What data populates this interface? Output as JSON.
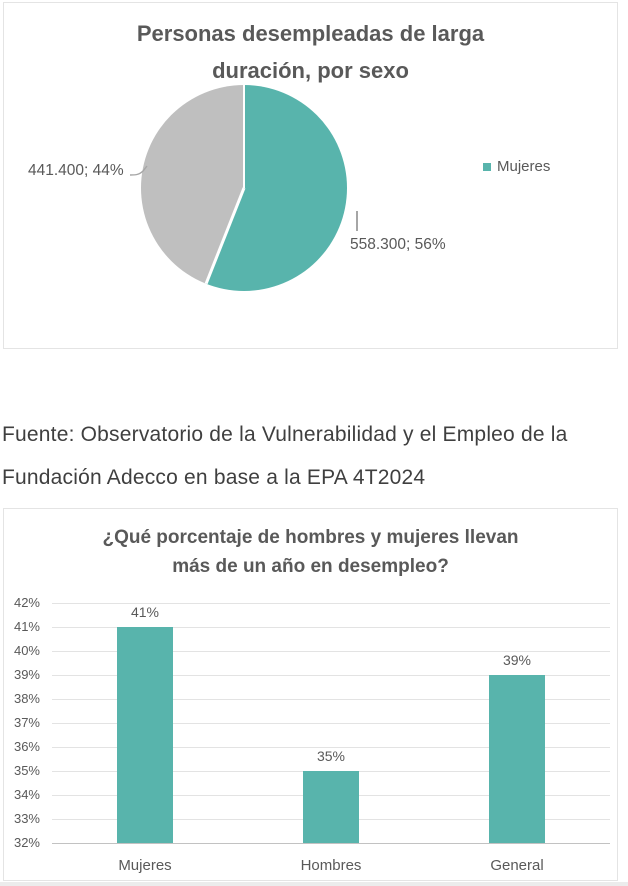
{
  "colors": {
    "teal": "#58B4AC",
    "pie_gray": "#BFBFBF",
    "chart_text": "#595959",
    "source_text": "#3F3F3F",
    "gridline": "#E3E3E3",
    "axis_line": "#C2C2C2",
    "leader_line": "#A6A6A6",
    "card_border": "#E4E4E4"
  },
  "pie_card": {
    "title_line1": "Personas desempleadas de larga",
    "title_line2": "duración, por sexo"
  },
  "source_note": {
    "line1": "Fuente: Observatorio de la Vulnerabilidad y el Empleo de la",
    "line2": "Fundación Adecco en base a la EPA 4T2024"
  },
  "bar_card": {
    "title_line1": "¿Qué porcentaje de hombres y mujeres llevan",
    "title_line2": "más de un año en desempleo?"
  },
  "chart_data": [
    {
      "type": "pie",
      "title": "Personas desempleadas de larga duración, por sexo",
      "slices": [
        {
          "label": "Mujeres",
          "value": 558300,
          "percent": 56,
          "data_label": "558.300; 56%",
          "color": "#58B4AC"
        },
        {
          "label": "",
          "value": 441400,
          "percent": 44,
          "data_label": "441.400; 44%",
          "color": "#BFBFBF"
        }
      ],
      "legend": {
        "position": "right",
        "entries": [
          "Mujeres"
        ]
      },
      "start_angle_deg": 0,
      "direction": "clockwise"
    },
    {
      "type": "bar",
      "title": "¿Qué porcentaje de hombres y mujeres llevan más de un año en desempleo?",
      "categories": [
        "Mujeres",
        "Hombres",
        "General"
      ],
      "values": [
        41,
        35,
        39
      ],
      "value_labels": [
        "41%",
        "35%",
        "39%"
      ],
      "ylim": [
        32,
        42
      ],
      "y_tick_labels": [
        "42%",
        "41%",
        "40%",
        "39%",
        "38%",
        "37%",
        "36%",
        "35%",
        "34%",
        "33%",
        "32%"
      ],
      "grid": true,
      "bar_color": "#58B4AC",
      "xlabel": "",
      "ylabel": ""
    }
  ]
}
